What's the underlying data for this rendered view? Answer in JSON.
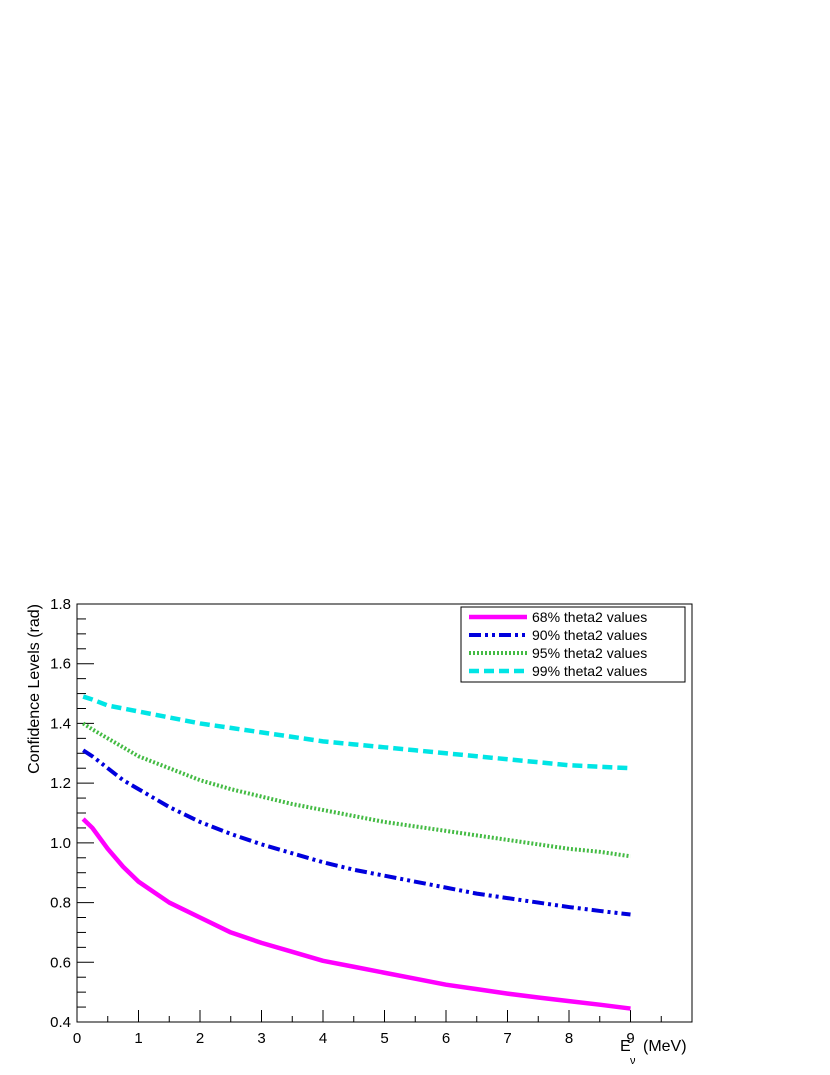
{
  "chart_data": {
    "type": "line",
    "title": "",
    "xlabel": "E",
    "xlabel_subscript": "ν",
    "xlabel_unit": "(MeV)",
    "ylabel": "Confidence Levels (rad)",
    "xlim": [
      0,
      10
    ],
    "ylim": [
      0.4,
      1.8
    ],
    "x_ticks": [
      0,
      1,
      2,
      3,
      4,
      5,
      6,
      7,
      8,
      9
    ],
    "y_ticks": [
      "0.4",
      "0.6",
      "0.8",
      "1.0",
      "1.2",
      "1.4",
      "1.6",
      "1.8"
    ],
    "y_tick_values": [
      0.4,
      0.6,
      0.8,
      1.0,
      1.2,
      1.4,
      1.6,
      1.8
    ],
    "grid": false,
    "legend_position": "top-right",
    "x": [
      0.1,
      0.25,
      0.5,
      0.75,
      1,
      1.5,
      2,
      2.5,
      3,
      3.5,
      4,
      4.5,
      5,
      5.5,
      6,
      6.5,
      7,
      7.5,
      8,
      8.5,
      9
    ],
    "series": [
      {
        "name": "68% theta2 values",
        "color": "#ff00ff",
        "style": "solid",
        "values": [
          1.08,
          1.05,
          0.98,
          0.92,
          0.87,
          0.8,
          0.75,
          0.7,
          0.665,
          0.635,
          0.605,
          0.585,
          0.565,
          0.545,
          0.525,
          0.51,
          0.495,
          0.482,
          0.47,
          0.458,
          0.445
        ]
      },
      {
        "name": "90% theta2 values",
        "color": "#0000dd",
        "style": "dashdotdot",
        "values": [
          1.31,
          1.29,
          1.25,
          1.21,
          1.18,
          1.12,
          1.07,
          1.03,
          0.995,
          0.965,
          0.935,
          0.91,
          0.89,
          0.87,
          0.85,
          0.83,
          0.815,
          0.8,
          0.785,
          0.772,
          0.76
        ]
      },
      {
        "name": "95% theta2 values",
        "color": "#44bb44",
        "style": "dotted",
        "values": [
          1.4,
          1.38,
          1.35,
          1.32,
          1.29,
          1.25,
          1.21,
          1.18,
          1.155,
          1.13,
          1.11,
          1.09,
          1.07,
          1.055,
          1.04,
          1.025,
          1.01,
          0.995,
          0.98,
          0.97,
          0.955
        ]
      },
      {
        "name": "99% theta2 values",
        "color": "#00e5e5",
        "style": "dashed",
        "values": [
          1.49,
          1.48,
          1.46,
          1.45,
          1.44,
          1.42,
          1.4,
          1.385,
          1.37,
          1.355,
          1.34,
          1.33,
          1.32,
          1.31,
          1.3,
          1.29,
          1.28,
          1.27,
          1.26,
          1.255,
          1.25
        ]
      }
    ]
  }
}
